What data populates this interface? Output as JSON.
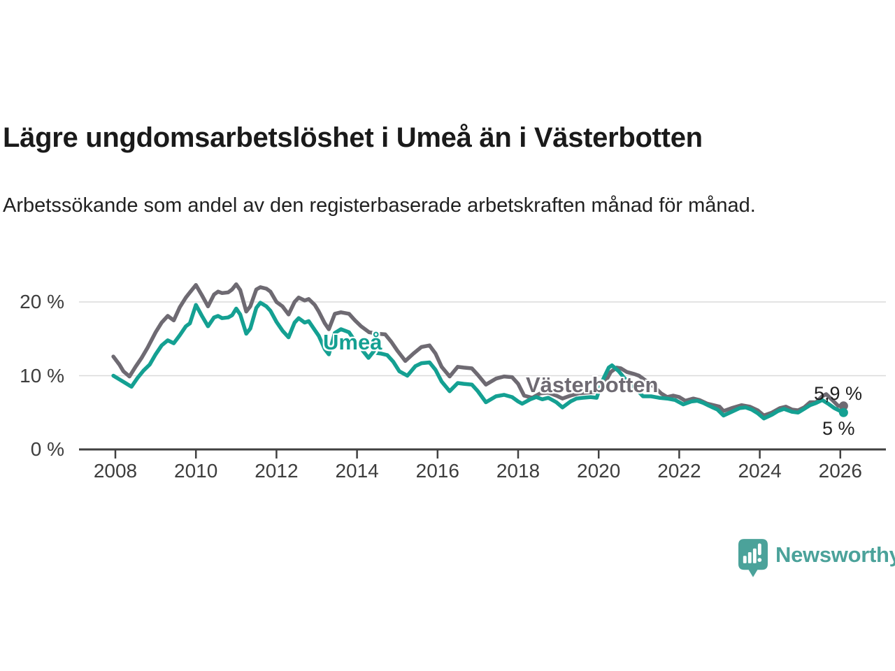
{
  "footer": {
    "brand": "Newsworthy"
  },
  "colors": {
    "umea": "#14a092",
    "vasterbotten": "#6e6a72",
    "grid": "#dadada",
    "axis": "#404040",
    "brand": "#4ba29a",
    "title_text": "#1a1a1a"
  },
  "chart_data": {
    "type": "line",
    "title": "Lägre ungdomsarbetslöshet i Umeå än i Västerbotten",
    "subtitle": "Arbetssökande som andel av den registerbaserade arbetskraften månad för månad.",
    "xlabel": "",
    "ylabel": "",
    "grid": "horizontal",
    "legend_position": "direct-labels-on-lines",
    "xlim": [
      2007.9,
      2026.3
    ],
    "ylim": [
      0,
      23
    ],
    "x_ticks": [
      {
        "year": 2008,
        "label": "2008"
      },
      {
        "year": 2010,
        "label": "2010"
      },
      {
        "year": 2012,
        "label": "2012"
      },
      {
        "year": 2014,
        "label": "2014"
      },
      {
        "year": 2016,
        "label": "2016"
      },
      {
        "year": 2018,
        "label": "2018"
      },
      {
        "year": 2020,
        "label": "2020"
      },
      {
        "year": 2022,
        "label": "2022"
      },
      {
        "year": 2024,
        "label": "2024"
      },
      {
        "year": 2026,
        "label": "2026"
      }
    ],
    "y_ticks": [
      {
        "value": 20,
        "label": "20 %"
      },
      {
        "value": 10,
        "label": "10 %"
      },
      {
        "value": 0,
        "label": "0 %"
      }
    ],
    "series": [
      {
        "id": "vasterbotten",
        "name": "Västerbotten",
        "color": "#6e6a72",
        "end_label": "5,9 %",
        "end_value": 5.9,
        "points": [
          [
            2007.95,
            12.6
          ],
          [
            2008.1,
            11.5
          ],
          [
            2008.2,
            10.6
          ],
          [
            2008.35,
            9.9
          ],
          [
            2008.5,
            11.2
          ],
          [
            2008.65,
            12.4
          ],
          [
            2008.8,
            13.8
          ],
          [
            2009.0,
            15.9
          ],
          [
            2009.15,
            17.2
          ],
          [
            2009.3,
            18.1
          ],
          [
            2009.45,
            17.5
          ],
          [
            2009.6,
            19.3
          ],
          [
            2009.75,
            20.6
          ],
          [
            2009.85,
            21.3
          ],
          [
            2010.0,
            22.3
          ],
          [
            2010.15,
            20.9
          ],
          [
            2010.3,
            19.4
          ],
          [
            2010.45,
            21.0
          ],
          [
            2010.55,
            21.4
          ],
          [
            2010.65,
            21.2
          ],
          [
            2010.8,
            21.3
          ],
          [
            2010.9,
            21.7
          ],
          [
            2011.0,
            22.4
          ],
          [
            2011.1,
            21.6
          ],
          [
            2011.25,
            18.7
          ],
          [
            2011.35,
            19.4
          ],
          [
            2011.5,
            21.7
          ],
          [
            2011.6,
            22.0
          ],
          [
            2011.75,
            21.8
          ],
          [
            2011.85,
            21.4
          ],
          [
            2012.0,
            20.0
          ],
          [
            2012.15,
            19.4
          ],
          [
            2012.3,
            18.3
          ],
          [
            2012.45,
            20.0
          ],
          [
            2012.55,
            20.6
          ],
          [
            2012.7,
            20.2
          ],
          [
            2012.8,
            20.4
          ],
          [
            2012.95,
            19.6
          ],
          [
            2013.05,
            18.7
          ],
          [
            2013.2,
            17.1
          ],
          [
            2013.3,
            16.3
          ],
          [
            2013.45,
            18.4
          ],
          [
            2013.6,
            18.6
          ],
          [
            2013.8,
            18.4
          ],
          [
            2013.95,
            17.5
          ],
          [
            2014.1,
            16.7
          ],
          [
            2014.3,
            15.9
          ],
          [
            2014.5,
            15.7
          ],
          [
            2014.7,
            15.6
          ],
          [
            2014.85,
            14.6
          ],
          [
            2015.0,
            13.4
          ],
          [
            2015.2,
            12.0
          ],
          [
            2015.4,
            13.0
          ],
          [
            2015.6,
            13.9
          ],
          [
            2015.8,
            14.1
          ],
          [
            2015.95,
            13.0
          ],
          [
            2016.1,
            11.2
          ],
          [
            2016.3,
            9.9
          ],
          [
            2016.5,
            11.2
          ],
          [
            2016.65,
            11.1
          ],
          [
            2016.85,
            11.0
          ],
          [
            2017.0,
            10.1
          ],
          [
            2017.2,
            8.8
          ],
          [
            2017.45,
            9.6
          ],
          [
            2017.65,
            9.9
          ],
          [
            2017.85,
            9.8
          ],
          [
            2018.0,
            8.9
          ],
          [
            2018.15,
            7.3
          ],
          [
            2018.35,
            7.0
          ],
          [
            2018.55,
            7.6
          ],
          [
            2018.75,
            7.7
          ],
          [
            2018.95,
            7.3
          ],
          [
            2019.1,
            6.9
          ],
          [
            2019.3,
            7.3
          ],
          [
            2019.5,
            7.6
          ],
          [
            2019.7,
            7.7
          ],
          [
            2019.9,
            7.8
          ],
          [
            2020.1,
            8.5
          ],
          [
            2020.3,
            10.5
          ],
          [
            2020.45,
            11.1
          ],
          [
            2020.55,
            11.0
          ],
          [
            2020.7,
            10.5
          ],
          [
            2020.9,
            10.2
          ],
          [
            2021.0,
            10.0
          ],
          [
            2021.2,
            9.2
          ],
          [
            2021.4,
            8.4
          ],
          [
            2021.55,
            7.6
          ],
          [
            2021.7,
            7.1
          ],
          [
            2021.85,
            7.3
          ],
          [
            2022.0,
            7.1
          ],
          [
            2022.15,
            6.6
          ],
          [
            2022.35,
            6.9
          ],
          [
            2022.5,
            6.7
          ],
          [
            2022.7,
            6.2
          ],
          [
            2022.85,
            6.0
          ],
          [
            2023.0,
            5.8
          ],
          [
            2023.1,
            5.2
          ],
          [
            2023.3,
            5.6
          ],
          [
            2023.55,
            6.0
          ],
          [
            2023.75,
            5.8
          ],
          [
            2023.95,
            5.3
          ],
          [
            2024.1,
            4.6
          ],
          [
            2024.3,
            5.0
          ],
          [
            2024.5,
            5.6
          ],
          [
            2024.65,
            5.8
          ],
          [
            2024.8,
            5.4
          ],
          [
            2024.95,
            5.3
          ],
          [
            2025.1,
            5.7
          ],
          [
            2025.25,
            6.4
          ],
          [
            2025.4,
            6.4
          ],
          [
            2025.55,
            7.2
          ],
          [
            2025.65,
            7.5
          ],
          [
            2025.8,
            6.7
          ],
          [
            2025.95,
            5.9
          ],
          [
            2026.08,
            5.9
          ]
        ]
      },
      {
        "id": "umea",
        "name": "Umeå",
        "color": "#14a092",
        "end_label": "5 %",
        "end_value": 5.0,
        "points": [
          [
            2007.95,
            10.0
          ],
          [
            2008.1,
            9.5
          ],
          [
            2008.25,
            9.0
          ],
          [
            2008.4,
            8.5
          ],
          [
            2008.55,
            9.7
          ],
          [
            2008.7,
            10.7
          ],
          [
            2008.85,
            11.5
          ],
          [
            2009.0,
            12.9
          ],
          [
            2009.15,
            14.1
          ],
          [
            2009.3,
            14.8
          ],
          [
            2009.45,
            14.4
          ],
          [
            2009.6,
            15.5
          ],
          [
            2009.75,
            16.7
          ],
          [
            2009.85,
            17.1
          ],
          [
            2010.0,
            19.6
          ],
          [
            2010.15,
            18.1
          ],
          [
            2010.3,
            16.7
          ],
          [
            2010.45,
            17.9
          ],
          [
            2010.55,
            18.1
          ],
          [
            2010.65,
            17.8
          ],
          [
            2010.8,
            17.9
          ],
          [
            2010.9,
            18.2
          ],
          [
            2011.0,
            19.1
          ],
          [
            2011.1,
            18.3
          ],
          [
            2011.25,
            15.7
          ],
          [
            2011.35,
            16.4
          ],
          [
            2011.5,
            19.2
          ],
          [
            2011.6,
            19.9
          ],
          [
            2011.75,
            19.4
          ],
          [
            2011.85,
            18.8
          ],
          [
            2012.0,
            17.3
          ],
          [
            2012.15,
            16.1
          ],
          [
            2012.3,
            15.2
          ],
          [
            2012.45,
            17.2
          ],
          [
            2012.55,
            17.8
          ],
          [
            2012.7,
            17.2
          ],
          [
            2012.8,
            17.4
          ],
          [
            2012.95,
            16.2
          ],
          [
            2013.05,
            15.4
          ],
          [
            2013.2,
            13.6
          ],
          [
            2013.3,
            12.9
          ],
          [
            2013.45,
            15.8
          ],
          [
            2013.6,
            16.3
          ],
          [
            2013.8,
            15.9
          ],
          [
            2013.95,
            14.7
          ],
          [
            2014.1,
            13.6
          ],
          [
            2014.3,
            12.5
          ],
          [
            2014.45,
            13.1
          ],
          [
            2014.6,
            13.0
          ],
          [
            2014.75,
            12.8
          ],
          [
            2014.9,
            11.9
          ],
          [
            2015.05,
            10.6
          ],
          [
            2015.25,
            10.0
          ],
          [
            2015.45,
            11.3
          ],
          [
            2015.6,
            11.7
          ],
          [
            2015.8,
            11.8
          ],
          [
            2015.95,
            10.8
          ],
          [
            2016.1,
            9.2
          ],
          [
            2016.3,
            7.9
          ],
          [
            2016.5,
            9.0
          ],
          [
            2016.65,
            8.9
          ],
          [
            2016.85,
            8.8
          ],
          [
            2017.0,
            7.9
          ],
          [
            2017.2,
            6.4
          ],
          [
            2017.45,
            7.2
          ],
          [
            2017.65,
            7.4
          ],
          [
            2017.85,
            7.1
          ],
          [
            2018.0,
            6.5
          ],
          [
            2018.1,
            6.2
          ],
          [
            2018.3,
            6.8
          ],
          [
            2018.45,
            7.1
          ],
          [
            2018.6,
            6.8
          ],
          [
            2018.75,
            7.0
          ],
          [
            2018.95,
            6.4
          ],
          [
            2019.1,
            5.7
          ],
          [
            2019.3,
            6.5
          ],
          [
            2019.45,
            6.9
          ],
          [
            2019.6,
            7.0
          ],
          [
            2019.8,
            7.1
          ],
          [
            2019.95,
            7.0
          ],
          [
            2020.1,
            9.4
          ],
          [
            2020.25,
            11.1
          ],
          [
            2020.33,
            11.4
          ],
          [
            2020.5,
            10.6
          ],
          [
            2020.65,
            9.6
          ],
          [
            2020.85,
            8.6
          ],
          [
            2021.0,
            7.8
          ],
          [
            2021.1,
            7.2
          ],
          [
            2021.3,
            7.2
          ],
          [
            2021.5,
            7.0
          ],
          [
            2021.7,
            6.9
          ],
          [
            2021.9,
            6.7
          ],
          [
            2022.1,
            6.1
          ],
          [
            2022.3,
            6.5
          ],
          [
            2022.45,
            6.6
          ],
          [
            2022.6,
            6.3
          ],
          [
            2022.75,
            5.9
          ],
          [
            2022.95,
            5.4
          ],
          [
            2023.1,
            4.6
          ],
          [
            2023.3,
            5.1
          ],
          [
            2023.5,
            5.6
          ],
          [
            2023.65,
            5.7
          ],
          [
            2023.8,
            5.4
          ],
          [
            2023.95,
            4.9
          ],
          [
            2024.1,
            4.2
          ],
          [
            2024.3,
            4.7
          ],
          [
            2024.45,
            5.2
          ],
          [
            2024.6,
            5.5
          ],
          [
            2024.8,
            5.1
          ],
          [
            2024.95,
            5.0
          ],
          [
            2025.1,
            5.5
          ],
          [
            2025.25,
            6.0
          ],
          [
            2025.4,
            6.3
          ],
          [
            2025.55,
            6.7
          ],
          [
            2025.7,
            6.2
          ],
          [
            2025.85,
            5.6
          ],
          [
            2026.0,
            5.2
          ],
          [
            2026.08,
            5.0
          ]
        ]
      }
    ]
  }
}
